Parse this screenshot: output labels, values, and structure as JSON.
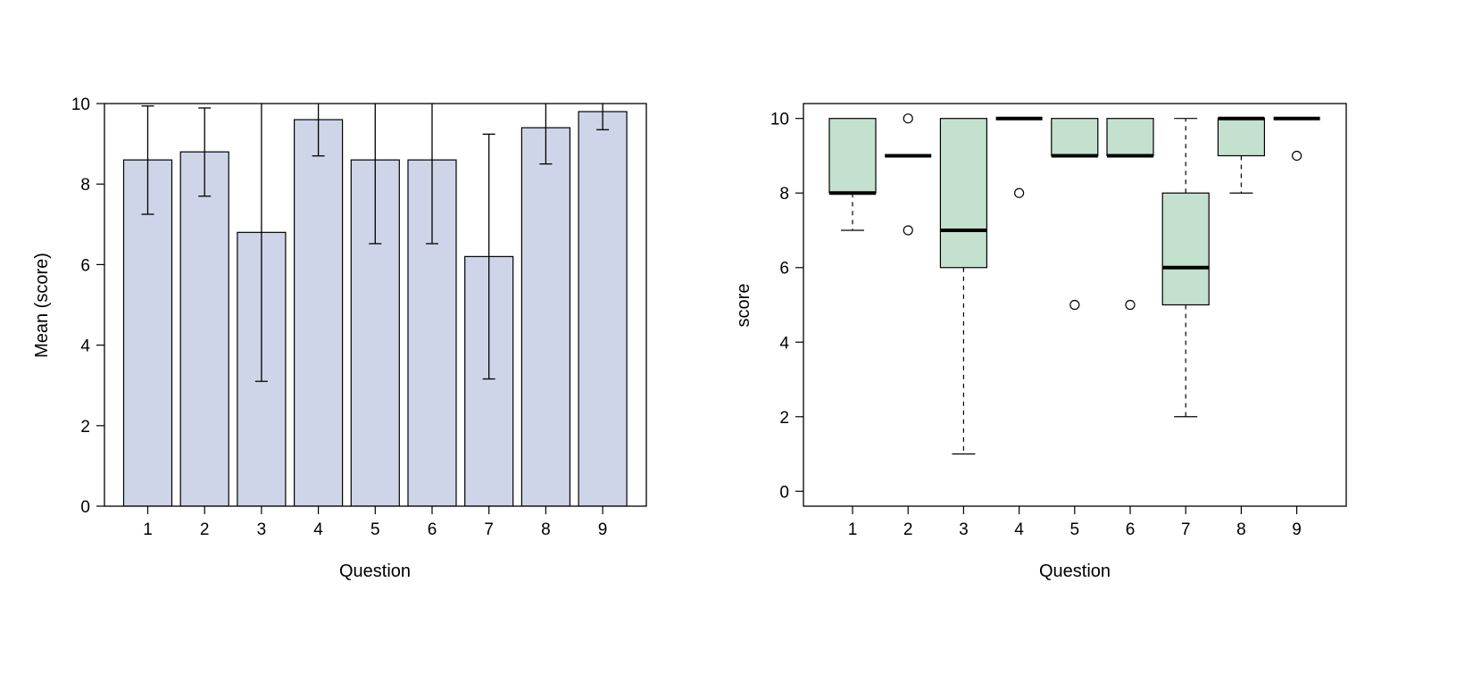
{
  "colors": {
    "bar_fill": "#cfd5e8",
    "box_fill": "#c4e1d0",
    "stroke": "#000000"
  },
  "chart_data": [
    {
      "type": "bar",
      "title": "",
      "xlabel": "Question",
      "ylabel": "Mean (score)",
      "categories": [
        "1",
        "2",
        "3",
        "4",
        "5",
        "6",
        "7",
        "8",
        "9"
      ],
      "values": [
        8.6,
        8.8,
        6.8,
        9.6,
        8.6,
        8.6,
        6.2,
        9.4,
        9.8
      ],
      "error_lower": [
        7.25,
        7.7,
        3.1,
        8.7,
        6.52,
        6.52,
        3.16,
        8.5,
        9.35
      ],
      "error_upper": [
        9.94,
        9.89,
        10.5,
        10.5,
        10.68,
        10.68,
        9.24,
        10.3,
        10.25
      ],
      "ylim": [
        0,
        10
      ],
      "yticks": [
        "0",
        "2",
        "4",
        "6",
        "8",
        "10"
      ],
      "grid": false
    },
    {
      "type": "boxplot",
      "title": "",
      "xlabel": "Question",
      "ylabel": "score",
      "categories": [
        "1",
        "2",
        "3",
        "4",
        "5",
        "6",
        "7",
        "8",
        "9"
      ],
      "boxes": [
        {
          "min": 7,
          "q1": 8,
          "median": 8,
          "q3": 10,
          "max": 10,
          "outliers": []
        },
        {
          "min": 9,
          "q1": 9,
          "median": 9,
          "q3": 9,
          "max": 9,
          "outliers": [
            10,
            7
          ]
        },
        {
          "min": 1,
          "q1": 6,
          "median": 7,
          "q3": 10,
          "max": 10,
          "outliers": []
        },
        {
          "min": 10,
          "q1": 10,
          "median": 10,
          "q3": 10,
          "max": 10,
          "outliers": [
            8
          ]
        },
        {
          "min": 9,
          "q1": 9,
          "median": 9,
          "q3": 10,
          "max": 10,
          "outliers": [
            5
          ]
        },
        {
          "min": 9,
          "q1": 9,
          "median": 9,
          "q3": 10,
          "max": 10,
          "outliers": [
            5
          ]
        },
        {
          "min": 2,
          "q1": 5,
          "median": 6,
          "q3": 8,
          "max": 10,
          "outliers": []
        },
        {
          "min": 8,
          "q1": 9,
          "median": 10,
          "q3": 10,
          "max": 10,
          "outliers": []
        },
        {
          "min": 10,
          "q1": 10,
          "median": 10,
          "q3": 10,
          "max": 10,
          "outliers": [
            9
          ]
        }
      ],
      "ylim": [
        -0.4,
        10.4
      ],
      "yticks": [
        "0",
        "2",
        "4",
        "6",
        "8",
        "10"
      ],
      "grid": false
    }
  ]
}
